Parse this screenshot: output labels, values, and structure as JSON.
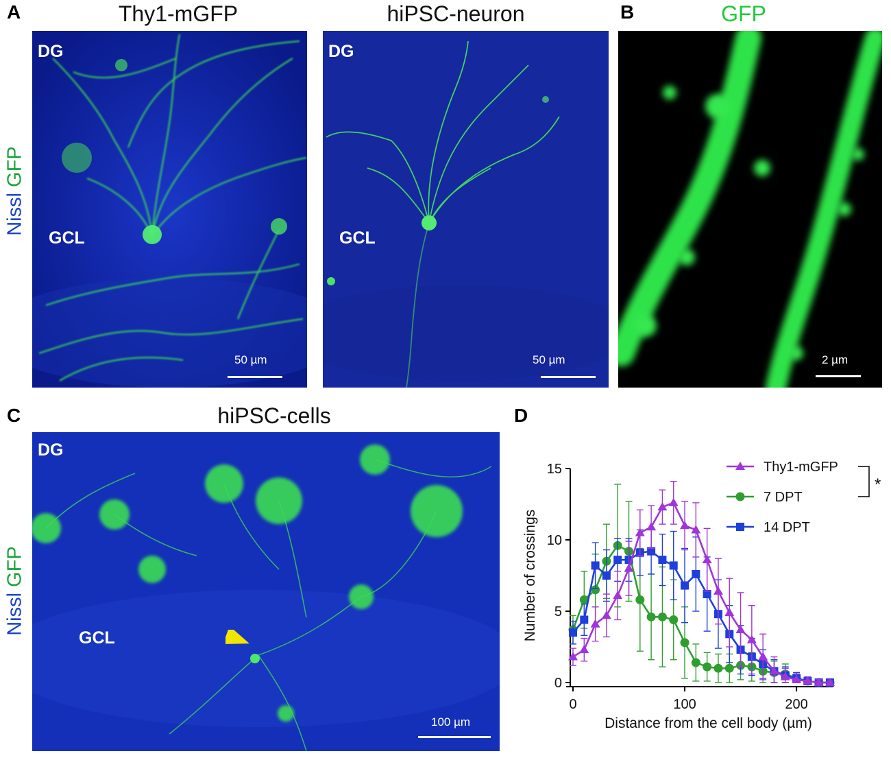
{
  "panels": {
    "a": {
      "letter": "A",
      "side_label_nissl": "Nissl",
      "side_label_gfp": "GFP",
      "left": {
        "title": "Thy1-mGFP",
        "region_top": "DG",
        "region_mid": "GCL",
        "scale": "50 µm"
      },
      "right": {
        "title": "hiPSC-neuron",
        "region_top": "DG",
        "region_mid": "GCL",
        "scale": "50 µm"
      }
    },
    "b": {
      "letter": "B",
      "title": "GFP",
      "title_color": "#22c83c",
      "scale": "2 µm"
    },
    "c": {
      "letter": "C",
      "title": "hiPSC-cells",
      "side_label_nissl": "Nissl",
      "side_label_gfp": "GFP",
      "region_top": "DG",
      "region_mid": "GCL",
      "scale": "100 µm",
      "arrow_color": "#f2e600"
    },
    "d": {
      "letter": "D"
    }
  },
  "chart_data": {
    "type": "line",
    "xlabel": "Distance from the cell body (µm)",
    "ylabel": "Number of crossings",
    "xlim": [
      0,
      230
    ],
    "ylim": [
      0,
      15
    ],
    "xticks": [
      "0",
      "100",
      "200"
    ],
    "yticks": [
      "0",
      "5",
      "10",
      "15"
    ],
    "significance": "*",
    "legend_position": "top-right",
    "series": [
      {
        "name": "Thy1-mGFP",
        "color": "#a035d8",
        "marker": "triangle",
        "x": [
          0,
          10,
          20,
          30,
          40,
          50,
          60,
          70,
          80,
          90,
          100,
          110,
          120,
          130,
          140,
          150,
          160,
          170,
          180,
          190,
          200,
          210,
          220,
          230
        ],
        "y": [
          1.8,
          2.3,
          4.1,
          4.7,
          6.1,
          8.0,
          10.5,
          10.9,
          12.3,
          12.6,
          11.0,
          10.7,
          8.6,
          6.4,
          4.9,
          3.7,
          3.0,
          1.8,
          0.8,
          0.4,
          0.2,
          0.1,
          0.0,
          0.0
        ],
        "err": [
          0.6,
          0.8,
          1.2,
          1.5,
          1.7,
          1.9,
          1.6,
          1.5,
          1.2,
          1.5,
          1.7,
          1.9,
          2.2,
          2.3,
          2.4,
          2.6,
          2.4,
          1.6,
          1.0,
          0.6,
          0.4,
          0.3,
          0.2,
          0.1
        ]
      },
      {
        "name": " 7  DPT",
        "color": "#2f9e2f",
        "marker": "circle",
        "x": [
          0,
          10,
          20,
          30,
          40,
          50,
          60,
          70,
          80,
          90,
          100,
          110,
          120,
          130,
          140,
          150,
          160,
          170,
          180,
          190,
          200,
          210,
          220,
          230
        ],
        "y": [
          3.7,
          5.8,
          6.5,
          8.5,
          9.6,
          9.2,
          5.8,
          4.6,
          4.6,
          4.4,
          2.8,
          1.4,
          1.1,
          1.0,
          1.0,
          1.2,
          1.1,
          0.8,
          0.7,
          0.6,
          0.3,
          0.1,
          0.0,
          0.0
        ],
        "err": [
          1.0,
          2.0,
          2.5,
          2.6,
          4.3,
          3.5,
          3.6,
          3.0,
          3.5,
          2.8,
          2.5,
          1.3,
          1.0,
          1.0,
          1.0,
          1.0,
          1.0,
          0.9,
          0.8,
          0.7,
          0.4,
          0.2,
          0.1,
          0.1
        ]
      },
      {
        "name": "14 DPT",
        "color": "#1f3fdb",
        "marker": "square",
        "x": [
          0,
          10,
          20,
          30,
          40,
          50,
          60,
          70,
          80,
          90,
          100,
          110,
          120,
          130,
          140,
          150,
          160,
          170,
          180,
          190,
          200,
          210,
          220,
          230
        ],
        "y": [
          3.5,
          4.4,
          8.2,
          7.5,
          8.6,
          8.6,
          9.1,
          9.2,
          8.6,
          8.2,
          6.8,
          7.6,
          6.2,
          4.8,
          3.4,
          2.3,
          1.8,
          1.3,
          0.8,
          0.5,
          0.3,
          0.1,
          0.0,
          0.0
        ],
        "err": [
          0.8,
          1.1,
          1.6,
          1.8,
          1.5,
          1.5,
          1.6,
          1.6,
          1.8,
          2.4,
          2.6,
          2.6,
          2.6,
          2.4,
          2.0,
          1.7,
          1.3,
          1.0,
          0.8,
          0.6,
          0.4,
          0.2,
          0.1,
          0.1
        ]
      }
    ]
  }
}
